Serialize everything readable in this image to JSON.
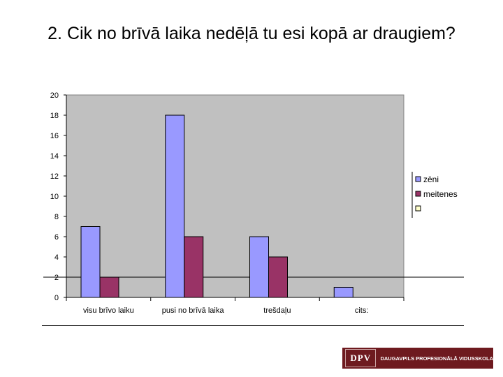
{
  "title": "2. Cik no brīvā laika nedēļā tu  esi kopā ar draugiem?",
  "chart_data": {
    "type": "bar",
    "categories": [
      "visu brīvo laiku",
      "pusi no brīvā laika",
      "trešdaļu",
      "cits:"
    ],
    "series": [
      {
        "name": "zēni",
        "values": [
          7,
          18,
          6,
          1
        ],
        "color": "#9999ff"
      },
      {
        "name": "meitenes",
        "values": [
          2,
          6,
          4,
          0
        ],
        "color": "#993366"
      },
      {
        "name": "",
        "values": [
          0,
          0,
          0,
          0
        ],
        "color": "#ffffcc"
      }
    ],
    "ylim": [
      0,
      20
    ],
    "yticks": [
      0,
      2,
      4,
      6,
      8,
      10,
      12,
      14,
      16,
      18,
      20
    ],
    "grid": false,
    "plot_background": "#c0c0c0",
    "legend_position": "right"
  },
  "logo": {
    "mark": "DPV",
    "text": "DAUGAVPILS PROFESIONĀLĀ VIDUSSKOLA",
    "color": "#6e1a1f"
  }
}
